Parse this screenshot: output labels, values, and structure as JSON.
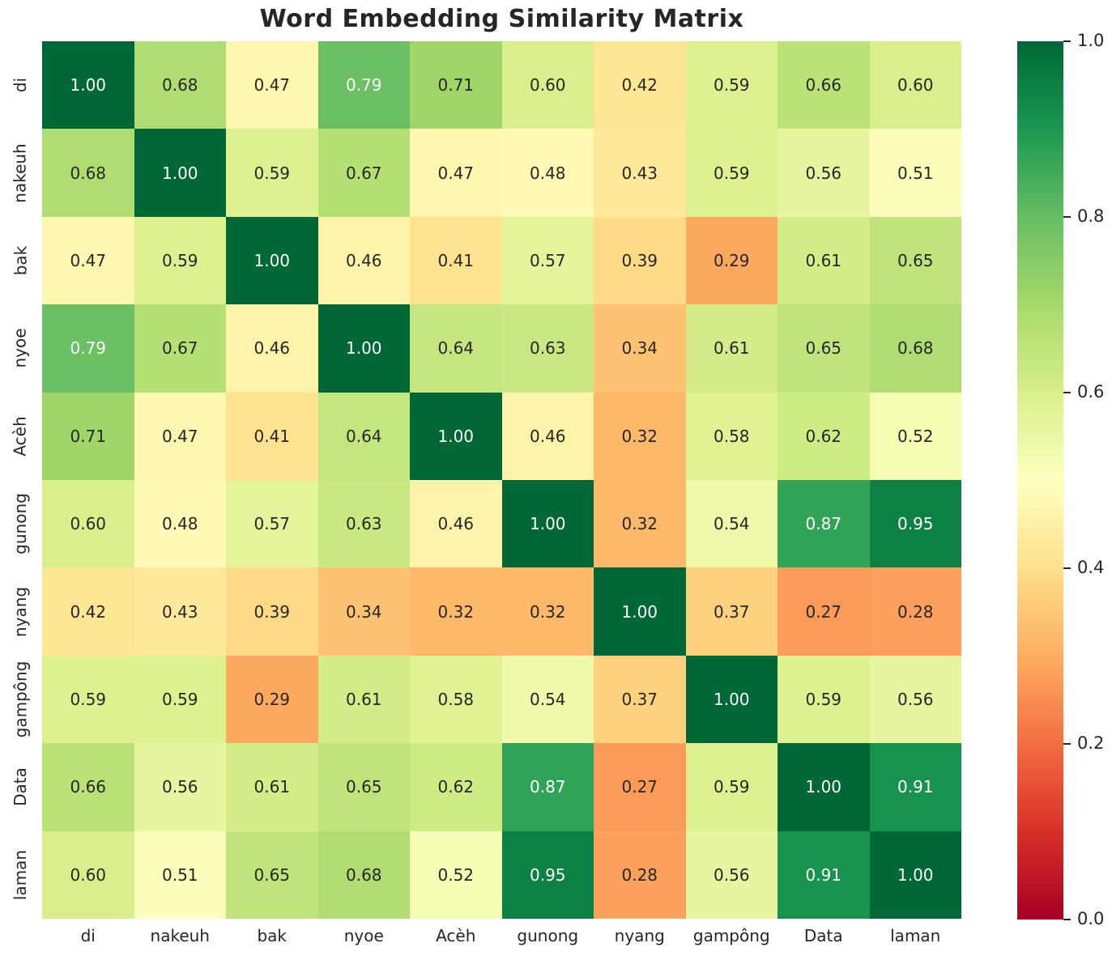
{
  "chart_data": {
    "type": "heatmap",
    "title": "Word Embedding Similarity Matrix",
    "x_labels": [
      "di",
      "nakeuh",
      "bak",
      "nyoe",
      "Acèh",
      "gunong",
      "nyang",
      "gampông",
      "Data",
      "laman"
    ],
    "y_labels": [
      "di",
      "nakeuh",
      "bak",
      "nyoe",
      "Acèh",
      "gunong",
      "nyang",
      "gampông",
      "Data",
      "laman"
    ],
    "matrix": [
      [
        1.0,
        0.68,
        0.47,
        0.79,
        0.71,
        0.6,
        0.42,
        0.59,
        0.66,
        0.6
      ],
      [
        0.68,
        1.0,
        0.59,
        0.67,
        0.47,
        0.48,
        0.43,
        0.59,
        0.56,
        0.51
      ],
      [
        0.47,
        0.59,
        1.0,
        0.46,
        0.41,
        0.57,
        0.39,
        0.29,
        0.61,
        0.65
      ],
      [
        0.79,
        0.67,
        0.46,
        1.0,
        0.64,
        0.63,
        0.34,
        0.61,
        0.65,
        0.68
      ],
      [
        0.71,
        0.47,
        0.41,
        0.64,
        1.0,
        0.46,
        0.32,
        0.58,
        0.62,
        0.52
      ],
      [
        0.6,
        0.48,
        0.57,
        0.63,
        0.46,
        1.0,
        0.32,
        0.54,
        0.87,
        0.95
      ],
      [
        0.42,
        0.43,
        0.39,
        0.34,
        0.32,
        0.32,
        1.0,
        0.37,
        0.27,
        0.28
      ],
      [
        0.59,
        0.59,
        0.29,
        0.61,
        0.58,
        0.54,
        0.37,
        1.0,
        0.59,
        0.56
      ],
      [
        0.66,
        0.56,
        0.61,
        0.65,
        0.62,
        0.87,
        0.27,
        0.59,
        1.0,
        0.91
      ],
      [
        0.6,
        0.51,
        0.65,
        0.68,
        0.52,
        0.95,
        0.28,
        0.56,
        0.91,
        1.0
      ]
    ],
    "value_decimals": 2,
    "vmin": 0.0,
    "vmax": 1.0,
    "grid": false,
    "legend": false,
    "colormap": {
      "name": "RdYlGn",
      "anchors": [
        "#a50026",
        "#d73027",
        "#f46d43",
        "#fdae61",
        "#fee08b",
        "#ffffbf",
        "#d9ef8b",
        "#a6d96a",
        "#66bd63",
        "#1a9850",
        "#006837"
      ]
    },
    "annotation_colors": {
      "light": "#ffffff",
      "dark": "#262626",
      "light_threshold": 0.75
    },
    "colorbar": {
      "position": "right",
      "tick_labels": [
        "1.0",
        "0.8",
        "0.6",
        "0.4",
        "0.2",
        "0.0"
      ],
      "tick_values": [
        1.0,
        0.8,
        0.6,
        0.4,
        0.2,
        0.0
      ]
    },
    "style": {
      "title_color": "#262626",
      "tick_label_color": "#262626",
      "background": "#ffffff"
    }
  }
}
